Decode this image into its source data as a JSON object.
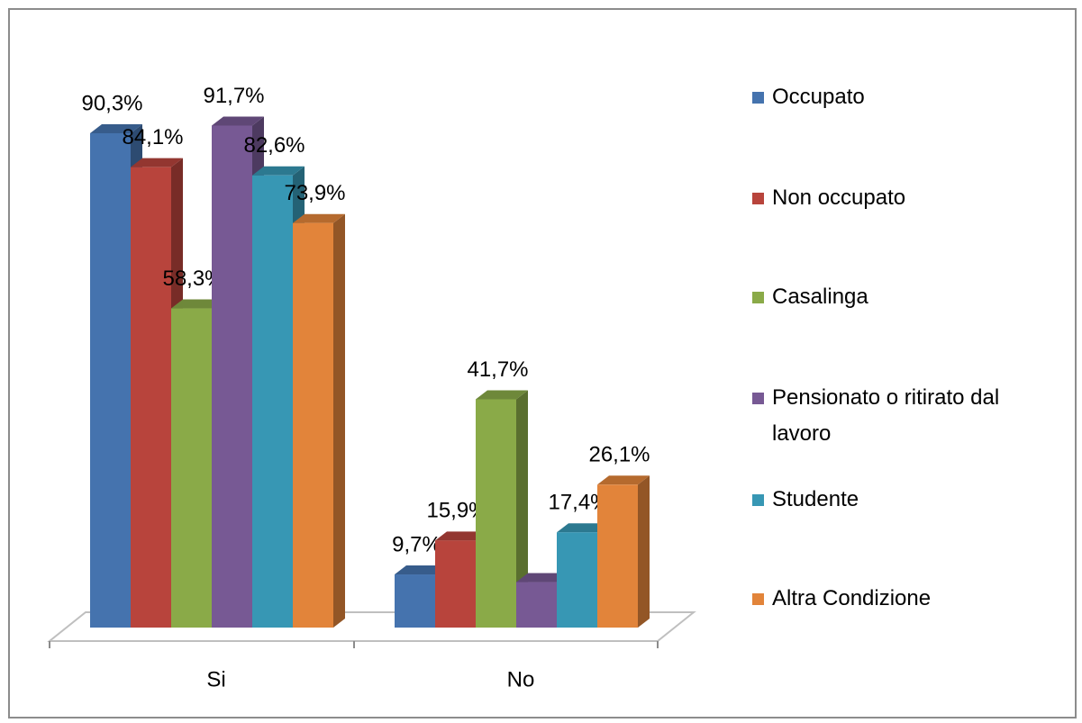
{
  "chart_data": {
    "type": "bar3d",
    "categories": [
      "Si",
      "No"
    ],
    "series": [
      {
        "name": "Occupato",
        "color": "#4573ae",
        "values": [
          90.3,
          9.7
        ],
        "value_labels": [
          "90,3%",
          "9,7%"
        ]
      },
      {
        "name": "Non occupato",
        "color": "#b8443c",
        "values": [
          84.1,
          15.9
        ],
        "value_labels": [
          "84,1%",
          "15,9%"
        ]
      },
      {
        "name": "Casalinga",
        "color": "#8aaa48",
        "values": [
          58.3,
          41.7
        ],
        "value_labels": [
          "58,3%",
          "41,7%"
        ]
      },
      {
        "name": "Pensionato o ritirato dal lavoro",
        "color": "#775994",
        "values": [
          91.7,
          8.3
        ],
        "value_labels": [
          "91,7%",
          null
        ]
      },
      {
        "name": "Studente",
        "color": "#3797b4",
        "values": [
          82.6,
          17.4
        ],
        "value_labels": [
          "82,6%",
          "17,4%"
        ]
      },
      {
        "name": "Altra Condizione",
        "color": "#e2843a",
        "values": [
          73.9,
          26.1
        ],
        "value_labels": [
          "73,9%",
          "26,1%"
        ]
      }
    ],
    "legend": "right"
  }
}
